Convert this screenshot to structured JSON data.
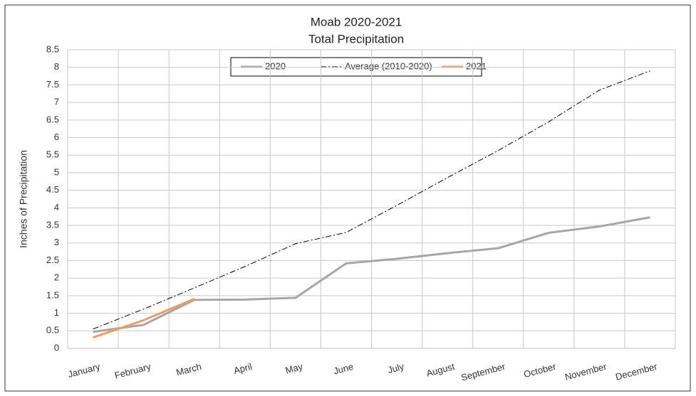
{
  "chart_data": {
    "type": "line",
    "title": "Moab 2020-2021",
    "subtitle": "Total Precipitation",
    "y_label": "Inches of Precipitation",
    "categories": [
      "January",
      "February",
      "March",
      "April",
      "May",
      "June",
      "July",
      "August",
      "September",
      "October",
      "November",
      "December"
    ],
    "series": [
      {
        "name": "2020",
        "color": "#a6a6a6",
        "dash": "solid",
        "values": [
          0.47,
          0.67,
          1.38,
          1.39,
          1.44,
          2.42,
          2.55,
          2.71,
          2.85,
          3.29,
          3.47,
          3.73
        ]
      },
      {
        "name": "Average (2010-2020)",
        "color": "#000000",
        "dash": "dashdot",
        "values": [
          0.55,
          1.12,
          1.72,
          2.33,
          2.98,
          3.3,
          4.07,
          4.86,
          5.63,
          6.45,
          7.35,
          7.9
        ]
      },
      {
        "name": "2021",
        "color": "#ed9d62",
        "dash": "solid",
        "values": [
          0.31,
          0.8,
          1.41,
          null,
          null,
          null,
          null,
          null,
          null,
          null,
          null,
          null
        ]
      }
    ],
    "ylim": [
      0,
      8.5
    ],
    "yticks": [
      0,
      0.5,
      1,
      1.5,
      2,
      2.5,
      3,
      3.5,
      4,
      4.5,
      5,
      5.5,
      6,
      6.5,
      7,
      7.5,
      8,
      8.5
    ],
    "grid": true,
    "legend": "top"
  }
}
